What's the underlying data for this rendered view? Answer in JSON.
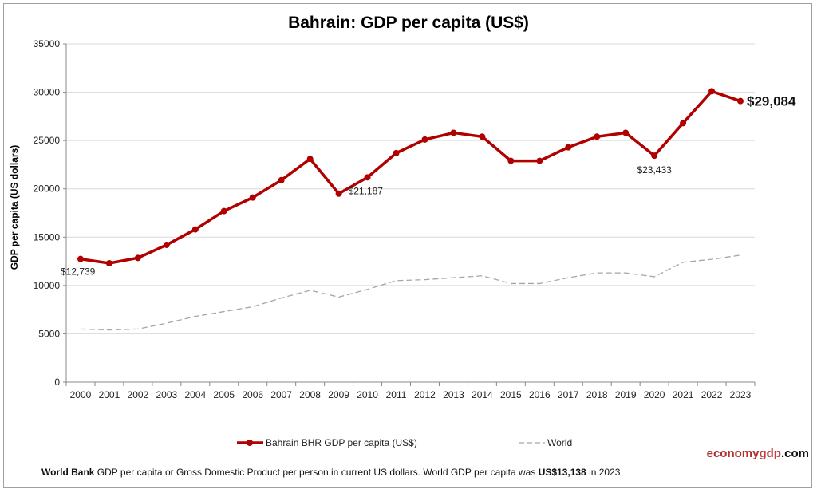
{
  "chart_data": {
    "type": "line",
    "title": "Bahrain: GDP per capita (US$)",
    "xlabel": "",
    "ylabel": "GDP per capita (US dollars)",
    "ylim": [
      0,
      35000
    ],
    "yticks": [
      0,
      5000,
      10000,
      15000,
      20000,
      25000,
      30000,
      35000
    ],
    "grid": true,
    "legend_position": "bottom",
    "categories": [
      "2000",
      "2001",
      "2002",
      "2003",
      "2004",
      "2005",
      "2006",
      "2007",
      "2008",
      "2009",
      "2010",
      "2011",
      "2012",
      "2013",
      "2014",
      "2015",
      "2016",
      "2017",
      "2018",
      "2019",
      "2020",
      "2021",
      "2022",
      "2023"
    ],
    "series": [
      {
        "name": "Bahrain BHR GDP per capita (US$)",
        "color": "#b00000",
        "style": "solid-markers",
        "values": [
          12739,
          12300,
          12850,
          14200,
          15800,
          17700,
          19100,
          20900,
          23100,
          19500,
          21187,
          23700,
          25100,
          25800,
          25400,
          22900,
          22900,
          24300,
          25400,
          25800,
          23433,
          26800,
          30100,
          29084
        ]
      },
      {
        "name": "World",
        "color": "#a6a6a6",
        "style": "dashed",
        "values": [
          5500,
          5400,
          5500,
          6100,
          6800,
          7300,
          7800,
          8700,
          9500,
          8800,
          9600,
          10500,
          10600,
          10800,
          11000,
          10200,
          10200,
          10800,
          11300,
          11300,
          10900,
          12400,
          12700,
          13138
        ]
      }
    ],
    "annotations": [
      {
        "year": "2000",
        "text": "$12,739"
      },
      {
        "year": "2010",
        "text": "$21,187"
      },
      {
        "year": "2020",
        "text": "$23,433"
      },
      {
        "year": "2023",
        "text": "$29,084"
      }
    ]
  },
  "footer": {
    "source_bold": "World Bank",
    "text": " GDP per capita or Gross Domestic Product per person  in current US dollars.   World GDP per capita was ",
    "world_value": "US$13,138",
    "suffix": "  in 2023"
  },
  "brand": {
    "part1": "economy",
    "part2": "gdp",
    "part3": ".com",
    "color1": "#b03030",
    "color2": "#c04040"
  }
}
